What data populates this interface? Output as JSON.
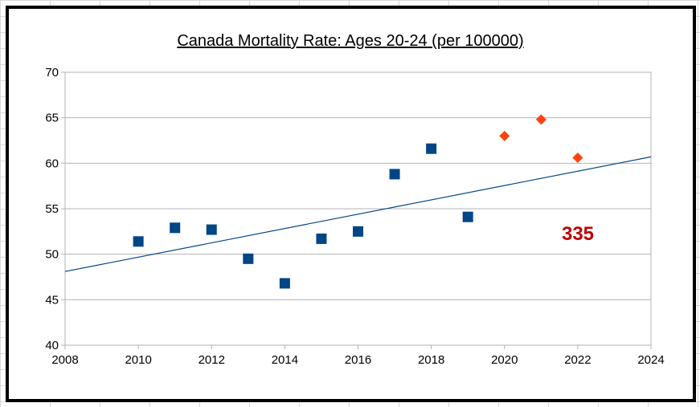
{
  "chart_data": {
    "type": "scatter",
    "title": "Canada Mortality Rate: Ages 20-24 (per 100000)",
    "xlabel": "",
    "ylabel": "",
    "xlim": [
      2008,
      2024
    ],
    "ylim": [
      40,
      70
    ],
    "xticks": [
      "2008",
      "2010",
      "2012",
      "2014",
      "2016",
      "2018",
      "2020",
      "2022",
      "2024"
    ],
    "yticks": [
      "40",
      "45",
      "50",
      "55",
      "60",
      "65",
      "70"
    ],
    "grid": true,
    "legend": "none",
    "series": [
      {
        "marker": "square",
        "color": "#004586",
        "x": [
          2010,
          2011,
          2012,
          2013,
          2014,
          2015,
          2016,
          2017,
          2018,
          2019
        ],
        "y": [
          51.4,
          52.9,
          52.7,
          49.5,
          46.8,
          51.7,
          52.5,
          58.8,
          61.6,
          54.1
        ]
      },
      {
        "marker": "diamond",
        "color": "#ff420e",
        "x": [
          2020,
          2021,
          2022
        ],
        "y": [
          63.0,
          64.8,
          60.6
        ]
      }
    ],
    "trendline": {
      "color": "#004586",
      "x": [
        2008,
        2024
      ],
      "y": [
        48.1,
        60.7
      ]
    },
    "annotations": [
      {
        "text": "335",
        "color": "#c00000"
      }
    ]
  }
}
